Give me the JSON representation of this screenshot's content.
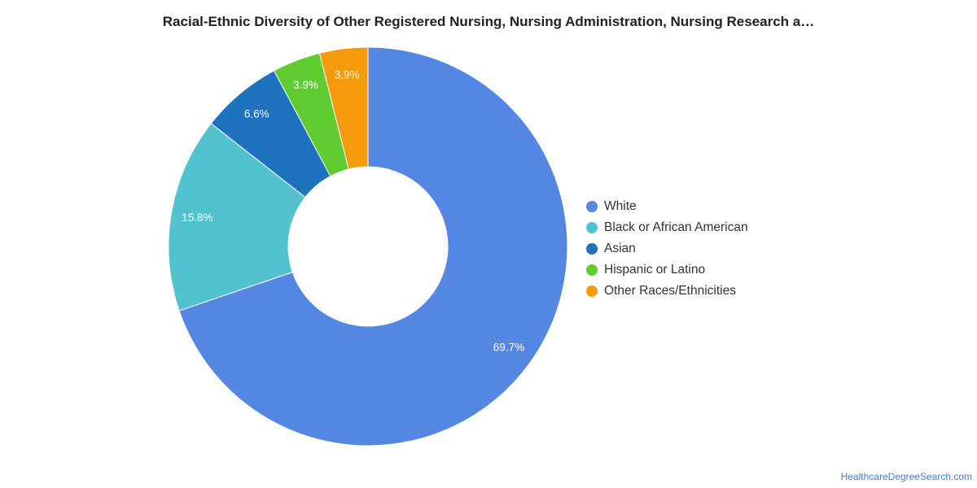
{
  "chart_data": {
    "type": "pie",
    "subtype": "donut",
    "title": "Racial-Ethnic Diversity of Other Registered Nursing, Nursing Administration, Nursing Research a…",
    "categories": [
      "White",
      "Black or African American",
      "Asian",
      "Hispanic or Latino",
      "Other Races/Ethnicities"
    ],
    "values": [
      69.7,
      15.8,
      6.6,
      3.9,
      3.9
    ],
    "value_labels": [
      "69.7%",
      "15.8%",
      "6.6%",
      "3.9%",
      "3.9%"
    ],
    "colors": [
      "#5487e2",
      "#52c2ce",
      "#1f72bd",
      "#5fcb30",
      "#f59a0a"
    ],
    "start_direction": "top",
    "order": "clockwise",
    "legend_position": "right"
  },
  "footer": {
    "watermark": "HealthcareDegreeSearch.com"
  }
}
